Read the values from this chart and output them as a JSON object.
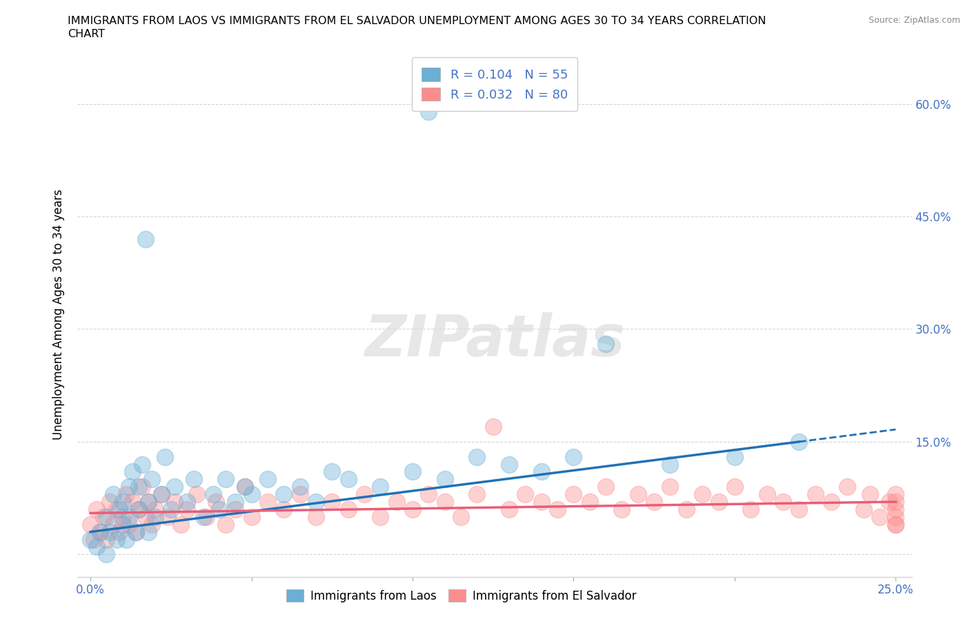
{
  "title_line1": "IMMIGRANTS FROM LAOS VS IMMIGRANTS FROM EL SALVADOR UNEMPLOYMENT AMONG AGES 30 TO 34 YEARS CORRELATION",
  "title_line2": "CHART",
  "source_text": "Source: ZipAtlas.com",
  "ylabel": "Unemployment Among Ages 30 to 34 years",
  "laos_color": "#6baed6",
  "salvador_color": "#fc8d8d",
  "laos_trend_color": "#2171b5",
  "salvador_trend_color": "#e85d7a",
  "laos_R": 0.104,
  "laos_N": 55,
  "salvador_R": 0.032,
  "salvador_N": 80,
  "watermark": "ZIPatlas",
  "xlim": [
    -0.004,
    0.255
  ],
  "ylim": [
    -0.03,
    0.67
  ],
  "xtick_positions": [
    0.0,
    0.05,
    0.1,
    0.15,
    0.2,
    0.25
  ],
  "xtick_labels": [
    "0.0%",
    "",
    "",
    "",
    "",
    "25.0%"
  ],
  "ytick_positions": [
    0.0,
    0.15,
    0.3,
    0.45,
    0.6
  ],
  "ytick_labels": [
    "",
    "15.0%",
    "30.0%",
    "45.0%",
    "60.0%"
  ],
  "laos_x": [
    0.0,
    0.002,
    0.003,
    0.005,
    0.005,
    0.006,
    0.007,
    0.008,
    0.009,
    0.01,
    0.01,
    0.011,
    0.012,
    0.012,
    0.013,
    0.014,
    0.015,
    0.015,
    0.016,
    0.017,
    0.018,
    0.018,
    0.019,
    0.02,
    0.022,
    0.023,
    0.025,
    0.026,
    0.03,
    0.032,
    0.035,
    0.038,
    0.04,
    0.042,
    0.045,
    0.048,
    0.05,
    0.055,
    0.06,
    0.065,
    0.07,
    0.075,
    0.08,
    0.09,
    0.1,
    0.105,
    0.11,
    0.12,
    0.13,
    0.14,
    0.15,
    0.16,
    0.18,
    0.2,
    0.22
  ],
  "laos_y": [
    0.02,
    0.01,
    0.03,
    0.0,
    0.05,
    0.03,
    0.08,
    0.02,
    0.06,
    0.04,
    0.07,
    0.02,
    0.09,
    0.05,
    0.11,
    0.03,
    0.09,
    0.06,
    0.12,
    0.42,
    0.03,
    0.07,
    0.1,
    0.05,
    0.08,
    0.13,
    0.06,
    0.09,
    0.07,
    0.1,
    0.05,
    0.08,
    0.06,
    0.1,
    0.07,
    0.09,
    0.08,
    0.1,
    0.08,
    0.09,
    0.07,
    0.11,
    0.1,
    0.09,
    0.11,
    0.59,
    0.1,
    0.13,
    0.12,
    0.11,
    0.13,
    0.28,
    0.12,
    0.13,
    0.15
  ],
  "salvador_x": [
    0.0,
    0.001,
    0.002,
    0.003,
    0.004,
    0.005,
    0.006,
    0.007,
    0.008,
    0.009,
    0.01,
    0.011,
    0.012,
    0.013,
    0.014,
    0.015,
    0.016,
    0.017,
    0.018,
    0.019,
    0.02,
    0.022,
    0.024,
    0.026,
    0.028,
    0.03,
    0.033,
    0.036,
    0.039,
    0.042,
    0.045,
    0.048,
    0.05,
    0.055,
    0.06,
    0.065,
    0.07,
    0.075,
    0.08,
    0.085,
    0.09,
    0.095,
    0.1,
    0.105,
    0.11,
    0.115,
    0.12,
    0.125,
    0.13,
    0.135,
    0.14,
    0.145,
    0.15,
    0.155,
    0.16,
    0.165,
    0.17,
    0.175,
    0.18,
    0.185,
    0.19,
    0.195,
    0.2,
    0.205,
    0.21,
    0.215,
    0.22,
    0.225,
    0.23,
    0.235,
    0.24,
    0.242,
    0.245,
    0.248,
    0.25,
    0.25,
    0.25,
    0.25,
    0.25,
    0.25
  ],
  "salvador_y": [
    0.04,
    0.02,
    0.06,
    0.03,
    0.05,
    0.02,
    0.07,
    0.04,
    0.06,
    0.03,
    0.05,
    0.08,
    0.04,
    0.07,
    0.03,
    0.06,
    0.09,
    0.05,
    0.07,
    0.04,
    0.06,
    0.08,
    0.05,
    0.07,
    0.04,
    0.06,
    0.08,
    0.05,
    0.07,
    0.04,
    0.06,
    0.09,
    0.05,
    0.07,
    0.06,
    0.08,
    0.05,
    0.07,
    0.06,
    0.08,
    0.05,
    0.07,
    0.06,
    0.08,
    0.07,
    0.05,
    0.08,
    0.17,
    0.06,
    0.08,
    0.07,
    0.06,
    0.08,
    0.07,
    0.09,
    0.06,
    0.08,
    0.07,
    0.09,
    0.06,
    0.08,
    0.07,
    0.09,
    0.06,
    0.08,
    0.07,
    0.06,
    0.08,
    0.07,
    0.09,
    0.06,
    0.08,
    0.05,
    0.07,
    0.04,
    0.06,
    0.08,
    0.05,
    0.07,
    0.04
  ]
}
